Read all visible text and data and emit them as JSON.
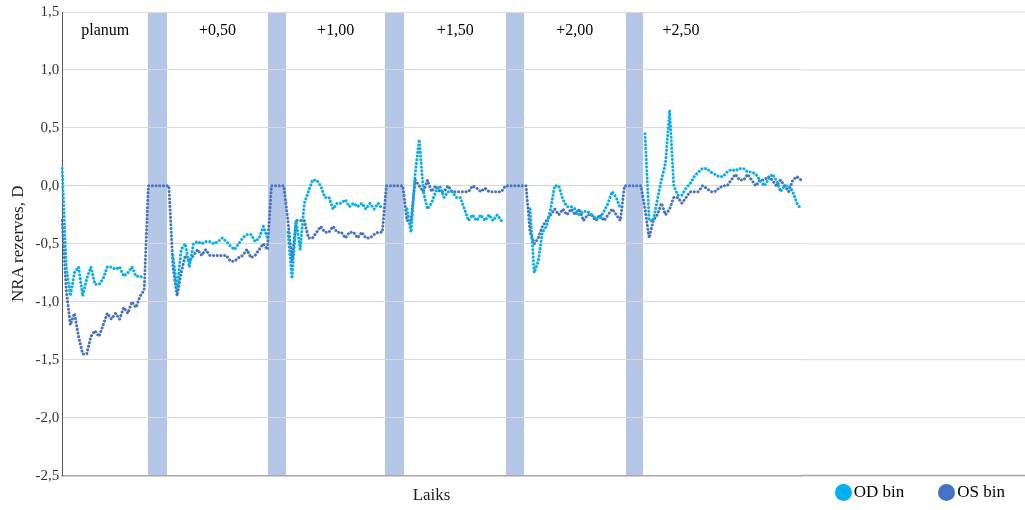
{
  "chart_data": {
    "type": "line",
    "xlabel": "Laiks",
    "ylabel": "NRA rezerves, D",
    "ylim": [
      -2.5,
      1.5
    ],
    "yticks": [
      {
        "value": -2.5,
        "label": "-2,5"
      },
      {
        "value": -2,
        "label": "-2,0"
      },
      {
        "value": -1.5,
        "label": "-1,5"
      },
      {
        "value": -1,
        "label": "-1,0"
      },
      {
        "value": -0.5,
        "label": "-0,5"
      },
      {
        "value": 0,
        "label": "0,0"
      },
      {
        "value": 0.5,
        "label": "0,5"
      },
      {
        "value": 1,
        "label": "1,0"
      },
      {
        "value": 1.5,
        "label": "1,5"
      }
    ],
    "tick_labels": "y",
    "grid": "y",
    "legend": "bottom right",
    "line_style": "dotted",
    "annotations": [
      "planum",
      "+0,50",
      "+1,00",
      "+1,50",
      "+2,00",
      "+2,50"
    ],
    "categories": [
      null,
      null,
      null,
      null,
      null,
      null,
      null,
      null,
      null,
      null,
      null,
      null,
      null,
      null,
      null,
      null,
      null,
      null,
      null,
      null,
      null,
      null,
      null,
      null,
      null,
      null,
      null,
      null,
      null,
      null,
      null,
      null,
      null,
      null,
      null,
      null,
      null,
      null,
      null,
      null,
      null,
      null,
      null,
      null,
      null,
      null,
      null,
      null,
      null,
      null,
      null,
      null,
      null,
      null,
      null,
      null,
      null,
      null,
      null,
      null,
      null,
      null,
      null,
      null,
      null,
      null,
      null,
      null,
      null,
      null,
      null,
      null,
      null,
      null,
      null,
      null,
      null,
      null,
      null,
      null,
      null,
      null,
      null,
      null,
      null,
      null,
      null,
      null,
      null,
      null,
      null,
      null,
      null,
      null,
      null,
      null,
      null,
      null,
      null,
      null,
      null,
      null,
      null,
      null,
      null,
      null,
      null,
      null,
      null,
      null,
      null,
      null,
      null,
      null,
      null,
      null,
      null,
      null,
      null,
      null,
      null,
      null,
      null,
      null,
      null,
      null,
      null,
      null,
      null,
      null,
      null,
      null,
      null,
      null,
      null,
      null,
      null,
      null,
      null,
      null,
      null,
      null,
      null,
      null,
      null,
      null,
      null,
      null,
      null,
      null,
      null,
      null,
      null,
      null,
      null,
      null,
      null,
      null,
      null,
      null,
      null,
      null,
      null,
      null,
      null,
      null,
      null,
      null,
      null,
      null,
      null,
      null,
      null,
      null,
      null,
      null,
      null,
      null,
      null,
      null,
      null
    ],
    "series": [
      {
        "name": "OD bin",
        "color": "#00b0f0",
        "values": [
          0.15,
          -0.7,
          -0.95,
          -0.75,
          -0.7,
          -0.95,
          -0.8,
          -0.7,
          -0.85,
          -0.85,
          -0.8,
          -0.7,
          -0.7,
          -0.72,
          -0.7,
          -0.78,
          -0.75,
          -0.7,
          -0.78,
          -0.78,
          -0.8,
          null,
          null,
          null,
          null,
          null,
          null,
          -0.6,
          -0.9,
          -0.55,
          -0.5,
          -0.7,
          -0.5,
          -0.48,
          -0.5,
          -0.48,
          -0.48,
          -0.5,
          -0.48,
          -0.45,
          -0.48,
          -0.52,
          -0.55,
          -0.5,
          -0.45,
          -0.42,
          -0.42,
          -0.48,
          -0.45,
          -0.35,
          -0.45,
          null,
          null,
          null,
          null,
          -0.4,
          -0.8,
          -0.3,
          -0.55,
          -0.15,
          -0.05,
          0.05,
          0.05,
          0,
          -0.1,
          -0.1,
          -0.2,
          -0.15,
          -0.15,
          -0.12,
          -0.18,
          -0.15,
          -0.18,
          -0.15,
          -0.2,
          -0.15,
          -0.2,
          -0.15,
          -0.2,
          null,
          null,
          null,
          null,
          null,
          -0.2,
          -0.4,
          0.1,
          0.4,
          -0.05,
          -0.2,
          -0.15,
          -0.05,
          0,
          -0.1,
          -0.05,
          -0.05,
          -0.1,
          -0.1,
          -0.2,
          -0.3,
          -0.25,
          -0.3,
          -0.25,
          -0.3,
          -0.25,
          -0.3,
          -0.25,
          -0.3,
          null,
          null,
          null,
          null,
          null,
          null,
          -0.2,
          -0.75,
          -0.65,
          -0.4,
          -0.35,
          -0.2,
          0,
          0,
          -0.12,
          -0.18,
          -0.18,
          -0.2,
          -0.25,
          -0.22,
          -0.22,
          -0.25,
          -0.28,
          -0.28,
          -0.22,
          -0.15,
          -0.05,
          -0.1,
          -0.2,
          null,
          null,
          null,
          null,
          null,
          0.45,
          -0.3,
          -0.3,
          -0.12,
          0.05,
          0.2,
          0.65,
          0,
          -0.08,
          -0.08,
          -0.02,
          0.02,
          0.08,
          0.12,
          0.15,
          0.15,
          0.12,
          0.1,
          0.08,
          0.08,
          0.12,
          0.14,
          0.13,
          0.15,
          0.15,
          0.12,
          0.12,
          0.1,
          0.05,
          0,
          0.05,
          0.1,
          0.05,
          -0.05,
          0,
          0,
          -0.05,
          -0.15,
          -0.2
        ]
      },
      {
        "name": "OS bin",
        "color": "#4472c4",
        "values": [
          -0.3,
          -0.9,
          -1.2,
          -1.1,
          -1.3,
          -1.45,
          -1.45,
          -1.3,
          -1.25,
          -1.3,
          -1.2,
          -1.1,
          -1.15,
          -1.1,
          -1.15,
          -1.05,
          -1.1,
          -1,
          -1.05,
          -0.95,
          -0.9,
          0,
          0,
          0,
          0,
          0,
          0,
          -0.7,
          -0.95,
          -0.75,
          -0.6,
          -0.65,
          -0.6,
          -0.55,
          -0.6,
          -0.55,
          -0.6,
          -0.6,
          -0.6,
          -0.6,
          -0.6,
          -0.65,
          -0.65,
          -0.62,
          -0.6,
          -0.55,
          -0.62,
          -0.6,
          -0.55,
          -0.5,
          -0.55,
          0,
          0,
          0,
          0,
          -0.3,
          -0.65,
          -0.3,
          -0.3,
          -0.3,
          -0.45,
          -0.45,
          -0.4,
          -0.35,
          -0.4,
          -0.4,
          -0.35,
          -0.4,
          -0.4,
          -0.45,
          -0.4,
          -0.4,
          -0.45,
          -0.4,
          -0.45,
          -0.45,
          -0.42,
          -0.4,
          -0.4,
          0,
          0,
          0,
          0,
          0,
          -0.3,
          -0.3,
          0.05,
          0,
          -0.05,
          0.05,
          -0.05,
          0,
          -0.05,
          -0.05,
          0,
          -0.05,
          -0.05,
          -0.05,
          -0.05,
          -0.05,
          0,
          -0.02,
          -0.05,
          -0.02,
          -0.05,
          -0.05,
          -0.05,
          -0.05,
          0,
          0,
          0,
          0,
          0,
          0,
          -0.4,
          -0.5,
          -0.45,
          -0.35,
          -0.3,
          -0.25,
          -0.2,
          -0.25,
          -0.2,
          -0.25,
          -0.2,
          -0.25,
          -0.2,
          -0.3,
          -0.25,
          -0.25,
          -0.3,
          -0.25,
          -0.3,
          -0.25,
          -0.2,
          -0.25,
          -0.3,
          0,
          0,
          0,
          0,
          0,
          -0.2,
          -0.45,
          -0.3,
          -0.25,
          -0.15,
          -0.25,
          -0.2,
          -0.1,
          -0.1,
          -0.15,
          -0.1,
          -0.05,
          -0.05,
          -0.05,
          0,
          -0.02,
          -0.05,
          -0.05,
          -0.02,
          0,
          0,
          0.05,
          0.1,
          0.05,
          0.05,
          0.1,
          0.05,
          0,
          0.05,
          0.05,
          0.08,
          0.05,
          0,
          0.05,
          0,
          -0.05,
          0.05,
          0.08,
          0.05
        ]
      }
    ]
  }
}
